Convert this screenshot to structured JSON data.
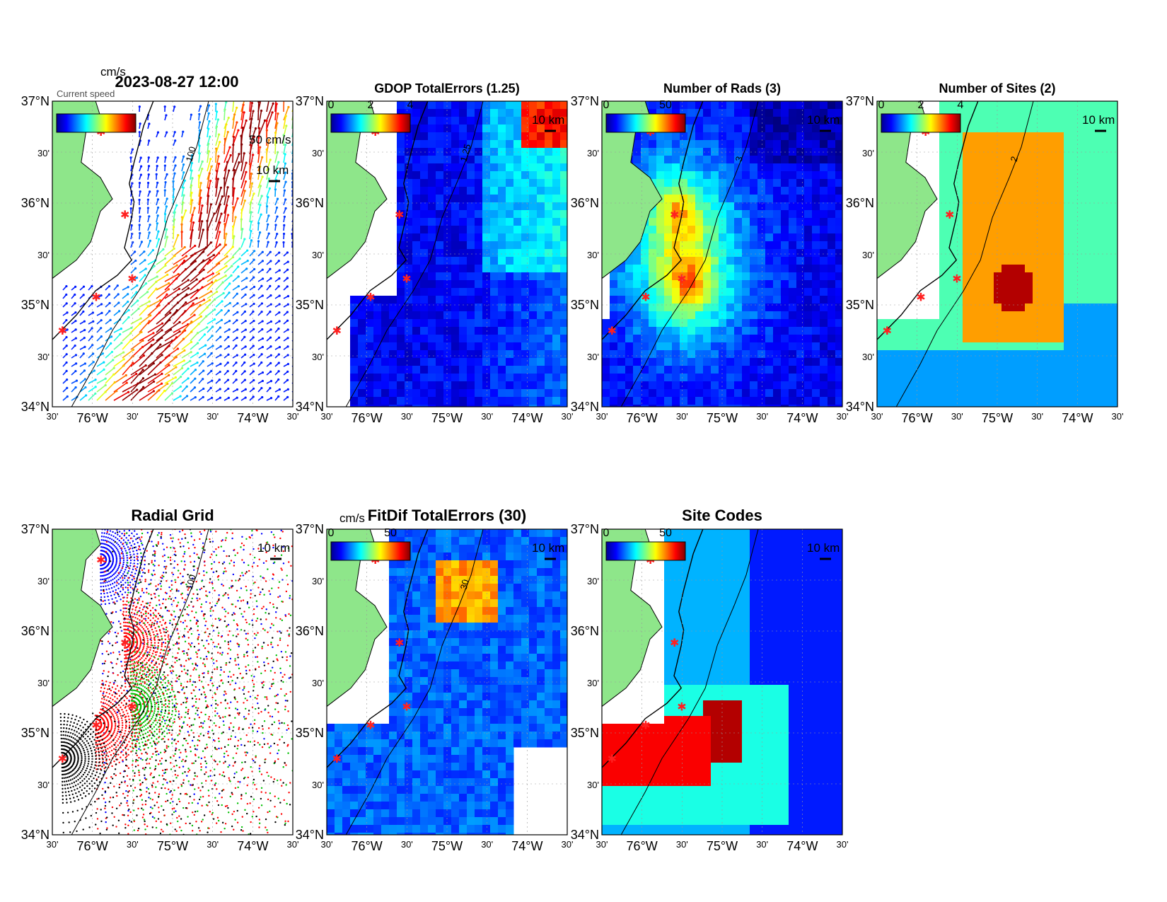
{
  "timestamp": "2023-08-27 12:00",
  "units_label": "cm/s",
  "overlap_text": "Current speed",
  "scale_vector": "50 cm/s",
  "scale_km": "10 km",
  "axis": {
    "lat_labels": [
      "37°N",
      "30'",
      "36°N",
      "30'",
      "35°N",
      "30'",
      "34°N"
    ],
    "lon_labels": [
      "30'",
      "76°W",
      "30'",
      "75°W",
      "30'",
      "74°W",
      "30'"
    ]
  },
  "panels": [
    {
      "id": "vectors",
      "title": "",
      "cb_ticks": [],
      "contour_label": "100"
    },
    {
      "id": "gdop",
      "title": "GDOP TotalErrors (1.25)",
      "cb_ticks": [
        "0",
        "2",
        "4"
      ],
      "contour_label": "1.25"
    },
    {
      "id": "nrads",
      "title": "Number of Rads (3)",
      "cb_ticks": [
        "0",
        "50"
      ],
      "contour_label": "3"
    },
    {
      "id": "nsites",
      "title": "Number of Sites (2)",
      "cb_ticks": [
        "0",
        "2",
        "4"
      ],
      "contour_label": "2"
    },
    {
      "id": "radgrid",
      "title": "Radial Grid",
      "cb_ticks": [],
      "contour_label": "100"
    },
    {
      "id": "fitdif",
      "title": "FitDif TotalErrors (30)",
      "cb_ticks": [
        "0",
        "50"
      ],
      "cb_units": "cm/s",
      "contour_label": "30"
    },
    {
      "id": "sitecodes",
      "title": "Site Codes",
      "cb_ticks": [
        "0",
        "50"
      ],
      "contour_label": ""
    }
  ],
  "colors": {
    "land": "#8ee68a",
    "coast": "#000000",
    "site_marker": "#ff2020"
  }
}
